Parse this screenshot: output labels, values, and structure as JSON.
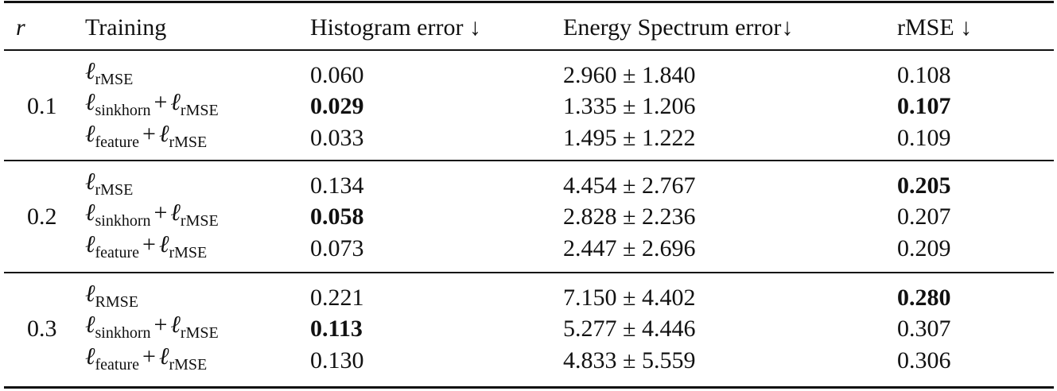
{
  "header": [
    "r",
    "Training",
    "Histogram error ↓",
    "Energy Spectrum error↓",
    "rMSE ↓"
  ],
  "header_italic": [
    0
  ],
  "groups": [
    {
      "r": "0.1",
      "rows": [
        {
          "training": {
            "terms": [
              {
                "base": "ℓ",
                "sub": "rMSE"
              }
            ]
          },
          "histogram": "0.060",
          "energy": "2.960 ± 1.840",
          "rmse": "0.108",
          "bold": []
        },
        {
          "training": {
            "terms": [
              {
                "base": "ℓ",
                "sub": "sinkhorn"
              },
              {
                "base": "ℓ",
                "sub": "rMSE"
              }
            ],
            "operator": "+"
          },
          "histogram": "0.029",
          "energy": "1.335 ± 1.206",
          "rmse": "0.107",
          "bold": [
            "histogram",
            "rmse"
          ]
        },
        {
          "training": {
            "terms": [
              {
                "base": "ℓ",
                "sub": "feature"
              },
              {
                "base": "ℓ",
                "sub": "rMSE"
              }
            ],
            "operator": "+"
          },
          "histogram": "0.033",
          "energy": "1.495 ± 1.222",
          "rmse": "0.109",
          "bold": []
        }
      ]
    },
    {
      "r": "0.2",
      "rows": [
        {
          "training": {
            "terms": [
              {
                "base": "ℓ",
                "sub": "rMSE"
              }
            ]
          },
          "histogram": "0.134",
          "energy": "4.454 ± 2.767",
          "rmse": "0.205",
          "bold": [
            "rmse"
          ]
        },
        {
          "training": {
            "terms": [
              {
                "base": "ℓ",
                "sub": "sinkhorn"
              },
              {
                "base": "ℓ",
                "sub": "rMSE"
              }
            ],
            "operator": "+"
          },
          "histogram": "0.058",
          "energy": "2.828 ± 2.236",
          "rmse": "0.207",
          "bold": [
            "histogram"
          ]
        },
        {
          "training": {
            "terms": [
              {
                "base": "ℓ",
                "sub": "feature"
              },
              {
                "base": "ℓ",
                "sub": "rMSE"
              }
            ],
            "operator": "+"
          },
          "histogram": "0.073",
          "energy": "2.447 ± 2.696",
          "rmse": "0.209",
          "bold": []
        }
      ]
    },
    {
      "r": "0.3",
      "rows": [
        {
          "training": {
            "terms": [
              {
                "base": "ℓ",
                "sub": "RMSE"
              }
            ]
          },
          "histogram": "0.221",
          "energy": "7.150 ± 4.402",
          "rmse": "0.280",
          "bold": [
            "rmse"
          ]
        },
        {
          "training": {
            "terms": [
              {
                "base": "ℓ",
                "sub": "sinkhorn"
              },
              {
                "base": "ℓ",
                "sub": "rMSE"
              }
            ],
            "operator": "+"
          },
          "histogram": "0.113",
          "energy": "5.277 ± 4.446",
          "rmse": "0.307",
          "bold": [
            "histogram"
          ]
        },
        {
          "training": {
            "terms": [
              {
                "base": "ℓ",
                "sub": "feature"
              },
              {
                "base": "ℓ",
                "sub": "rMSE"
              }
            ],
            "operator": "+"
          },
          "histogram": "0.130",
          "energy": "4.833 ± 5.559",
          "rmse": "0.306",
          "bold": []
        }
      ]
    }
  ]
}
